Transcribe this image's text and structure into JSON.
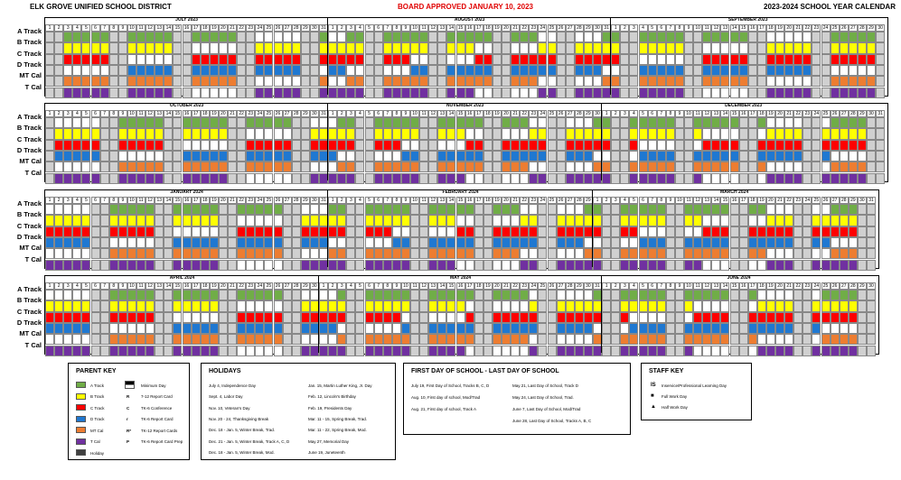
{
  "header": {
    "district": "ELK GROVE UNIFIED SCHOOL DISTRICT",
    "approved": "BOARD APPROVED JANUARY 10, 2023",
    "year_title": "2023-2024 SCHOOL YEAR CALENDAR"
  },
  "colors": {
    "green": "#70ad47",
    "yellow": "#ffff00",
    "red": "#ff0000",
    "blue": "#1f78d1",
    "orange": "#ed7d31",
    "purple": "#7030a0",
    "grey": "#d0d0d0",
    "dark": "#404040",
    "white": "#ffffff"
  },
  "track_labels": [
    "A Track",
    "B Track",
    "C Track",
    "D Track",
    "MT Cal",
    "T Cal"
  ],
  "quarters": [
    {
      "months": [
        {
          "name": "JULY 2023",
          "days": 31,
          "start": 6
        },
        {
          "name": "AUGUST 2023",
          "days": 31,
          "start": 2
        },
        {
          "name": "SEPTEMBER 2023",
          "days": 30,
          "start": 5
        }
      ]
    },
    {
      "months": [
        {
          "name": "OCTOBER 2023",
          "days": 31,
          "start": 0
        },
        {
          "name": "NOVEMBER 2023",
          "days": 30,
          "start": 3
        },
        {
          "name": "DECEMBER 2023",
          "days": 31,
          "start": 5
        }
      ]
    },
    {
      "months": [
        {
          "name": "JANUARY 2024",
          "days": 31,
          "start": 1
        },
        {
          "name": "FEBRUARY 2024",
          "days": 29,
          "start": 4
        },
        {
          "name": "MARCH 2024",
          "days": 31,
          "start": 5
        }
      ]
    },
    {
      "months": [
        {
          "name": "APRIL 2024",
          "days": 30,
          "start": 1
        },
        {
          "name": "MAY 2024",
          "days": 31,
          "start": 3
        },
        {
          "name": "JUNE 2024",
          "days": 30,
          "start": 6
        }
      ]
    }
  ],
  "parent_key": {
    "title": "PARENT KEY",
    "items": [
      {
        "label": "A Track",
        "color": "#70ad47"
      },
      {
        "label": "B Track",
        "color": "#ffff00"
      },
      {
        "label": "C Track",
        "color": "#ff0000"
      },
      {
        "label": "D Track",
        "color": "#1f78d1"
      },
      {
        "label": "MT Cal",
        "color": "#ed7d31"
      },
      {
        "label": "T Cal",
        "color": "#7030a0"
      },
      {
        "label": "Holiday",
        "color": "#404040"
      }
    ],
    "codes": [
      {
        "code": "",
        "label": "Minimum Day"
      },
      {
        "code": "R",
        "label": "7-12 Report Card"
      },
      {
        "code": "C",
        "label": "TK-6 Conference"
      },
      {
        "code": "r",
        "label": "TK-6 Report Card"
      },
      {
        "code": "R*",
        "label": "TK-12 Report Cards"
      },
      {
        "code": "P",
        "label": "TK-6 Report Card Prep"
      }
    ]
  },
  "holidays": {
    "title": "HOLIDAYS",
    "col1": [
      "July 4, Independence Day",
      "Sept. 4, Labor Day",
      "Nov. 10, Veteran's Day",
      "Nov. 20 - 24, Thanksgiving Break",
      "Dec. 18 - Jan. 5, Winter Break, Trad.",
      "Dec. 21 - Jan. 5, Winter Break, Track A, C, D",
      "Dec. 18 - Jan. 5, Winter Break, Mod."
    ],
    "col2": [
      "Jan. 15, Martin Luther King, Jr. Day",
      "Feb. 12, Lincoln's Birthday",
      "Feb. 19, Presidents Day",
      "Mar. 11 - 15, Spring Break, Trad.",
      "Mar. 11 - 22, Spring Break, Mod.",
      "May 27, Memorial Day",
      "June 19, Juneteenth"
    ]
  },
  "first_last": {
    "title": "FIRST DAY OF SCHOOL - LAST DAY OF SCHOOL",
    "col1": [
      "July 19, First Day of School, Tracks B, C, D",
      "Aug. 10, First day of school, Mod/Trad",
      "Aug. 21, First day of school, Track A"
    ],
    "col2": [
      "May 21, Last Day of School, Track D",
      "May 24, Last Day of School, Trad.",
      "June 7, Last Day of School, Mod/Trad",
      "June 28, Last Day of School, Tracks A, B, C"
    ]
  },
  "staff_key": {
    "title": "STAFF KEY",
    "items": [
      {
        "symbol": "IS",
        "label": "Inservice/Professional Learning Day"
      },
      {
        "symbol": "■",
        "label": "Full Work Day"
      },
      {
        "symbol": "▲",
        "label": "Half Work Day"
      }
    ]
  }
}
